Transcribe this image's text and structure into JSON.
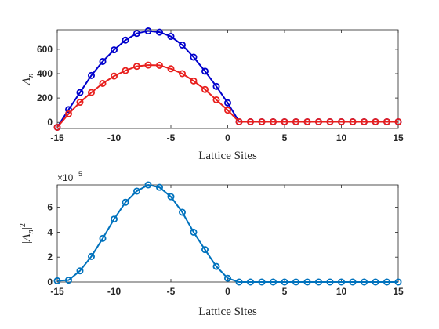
{
  "chart_data": [
    {
      "type": "line",
      "title": "",
      "xlabel": "Lattice Sites",
      "ylabel": "A_n",
      "ylabel_main": "A",
      "ylabel_sub": "n",
      "xlim": [
        -15,
        15
      ],
      "ylim": [
        -50,
        760
      ],
      "xticks": [
        -15,
        -10,
        -5,
        0,
        5,
        10,
        15
      ],
      "yticks": [
        0,
        200,
        400,
        600
      ],
      "grid": false,
      "marker": "circle",
      "x": [
        -15,
        -14,
        -13,
        -12,
        -11,
        -10,
        -9,
        -8,
        -7,
        -6,
        -5,
        -4,
        -3,
        -2,
        -1,
        0,
        1,
        2,
        3,
        4,
        5,
        6,
        7,
        8,
        9,
        10,
        11,
        12,
        13,
        14,
        15
      ],
      "series": [
        {
          "color": "#0000cc",
          "values": [
            -40,
            105,
            245,
            385,
            500,
            595,
            675,
            730,
            750,
            740,
            705,
            635,
            535,
            420,
            295,
            160,
            5,
            5,
            5,
            5,
            5,
            5,
            5,
            5,
            5,
            5,
            5,
            5,
            5,
            5,
            5
          ]
        },
        {
          "color": "#e8201e",
          "values": [
            -40,
            70,
            165,
            245,
            320,
            380,
            425,
            460,
            470,
            468,
            440,
            400,
            340,
            270,
            185,
            100,
            5,
            5,
            5,
            5,
            5,
            5,
            5,
            5,
            5,
            5,
            5,
            5,
            5,
            5,
            5
          ]
        }
      ]
    },
    {
      "type": "line",
      "title": "",
      "xlabel": "Lattice Sites",
      "ylabel": "|A_n|^2",
      "ylabel_main": "A",
      "ylabel_sub": "n",
      "ylabel_sup": "2",
      "y_exponent_label": "×10",
      "y_exponent": "5",
      "xlim": [
        -15,
        15
      ],
      "ylim": [
        0,
        7.8
      ],
      "xticks": [
        -15,
        -10,
        -5,
        0,
        5,
        10,
        15
      ],
      "yticks": [
        0,
        2,
        4,
        6
      ],
      "grid": false,
      "marker": "circle",
      "x": [
        -15,
        -14,
        -13,
        -12,
        -11,
        -10,
        -9,
        -8,
        -7,
        -6,
        -5,
        -4,
        -3,
        -2,
        -1,
        0,
        1,
        2,
        3,
        4,
        5,
        6,
        7,
        8,
        9,
        10,
        11,
        12,
        13,
        14,
        15
      ],
      "series": [
        {
          "color": "#0072bd",
          "values": [
            0.1,
            0.15,
            0.9,
            2.05,
            3.5,
            5.05,
            6.4,
            7.3,
            7.8,
            7.6,
            6.85,
            5.6,
            4.0,
            2.6,
            1.25,
            0.3,
            0.0,
            0.0,
            0.0,
            0.0,
            0.0,
            0.0,
            0.0,
            0.0,
            0.0,
            0.0,
            0.0,
            0.0,
            0.0,
            0.0,
            0.0
          ]
        }
      ]
    }
  ]
}
